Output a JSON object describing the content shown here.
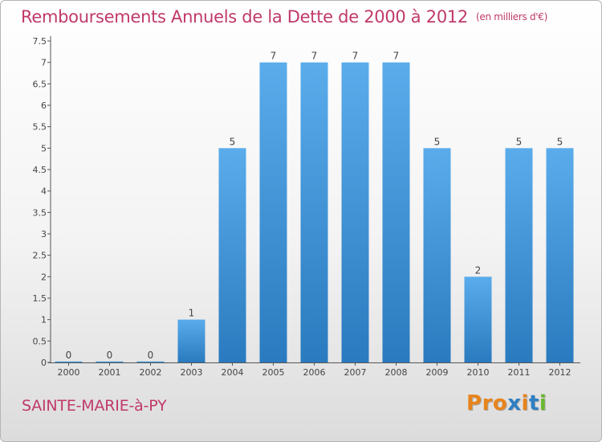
{
  "header": {
    "title": "Remboursements Annuels de la Dette de 2000 à 2012",
    "unit_note": "(en milliers d'€)"
  },
  "footer": {
    "commune": "SAINTE-MARIE-à-PY",
    "logo_text": "Proxiti",
    "logo_colors": [
      "#e8841c",
      "#e8841c",
      "#e8841c",
      "#2f7fc4",
      "#e8841c",
      "#2f7fc4",
      "#6ab82f"
    ]
  },
  "colors": {
    "title": "#c0396a",
    "bar_top": "#5aaceb",
    "bar_bottom": "#2a7abf"
  },
  "chart_data": {
    "type": "bar",
    "title": "Remboursements Annuels de la Dette de 2000 à 2012",
    "subtitle": "(en milliers d'€)",
    "xlabel": "",
    "ylabel": "",
    "categories": [
      "2000",
      "2001",
      "2002",
      "2003",
      "2004",
      "2005",
      "2006",
      "2007",
      "2008",
      "2009",
      "2010",
      "2011",
      "2012"
    ],
    "values": [
      0,
      0,
      0,
      1,
      5,
      7,
      7,
      7,
      7,
      5,
      2,
      5,
      5
    ],
    "ylim": [
      0,
      7.5
    ],
    "yticks": [
      "0",
      "0.5",
      "1",
      "1.5",
      "2",
      "2.5",
      "3",
      "3.5",
      "4",
      "4.5",
      "5",
      "5.5",
      "6",
      "6.5",
      "7",
      "7.5"
    ],
    "grid": false,
    "legend": "none"
  }
}
